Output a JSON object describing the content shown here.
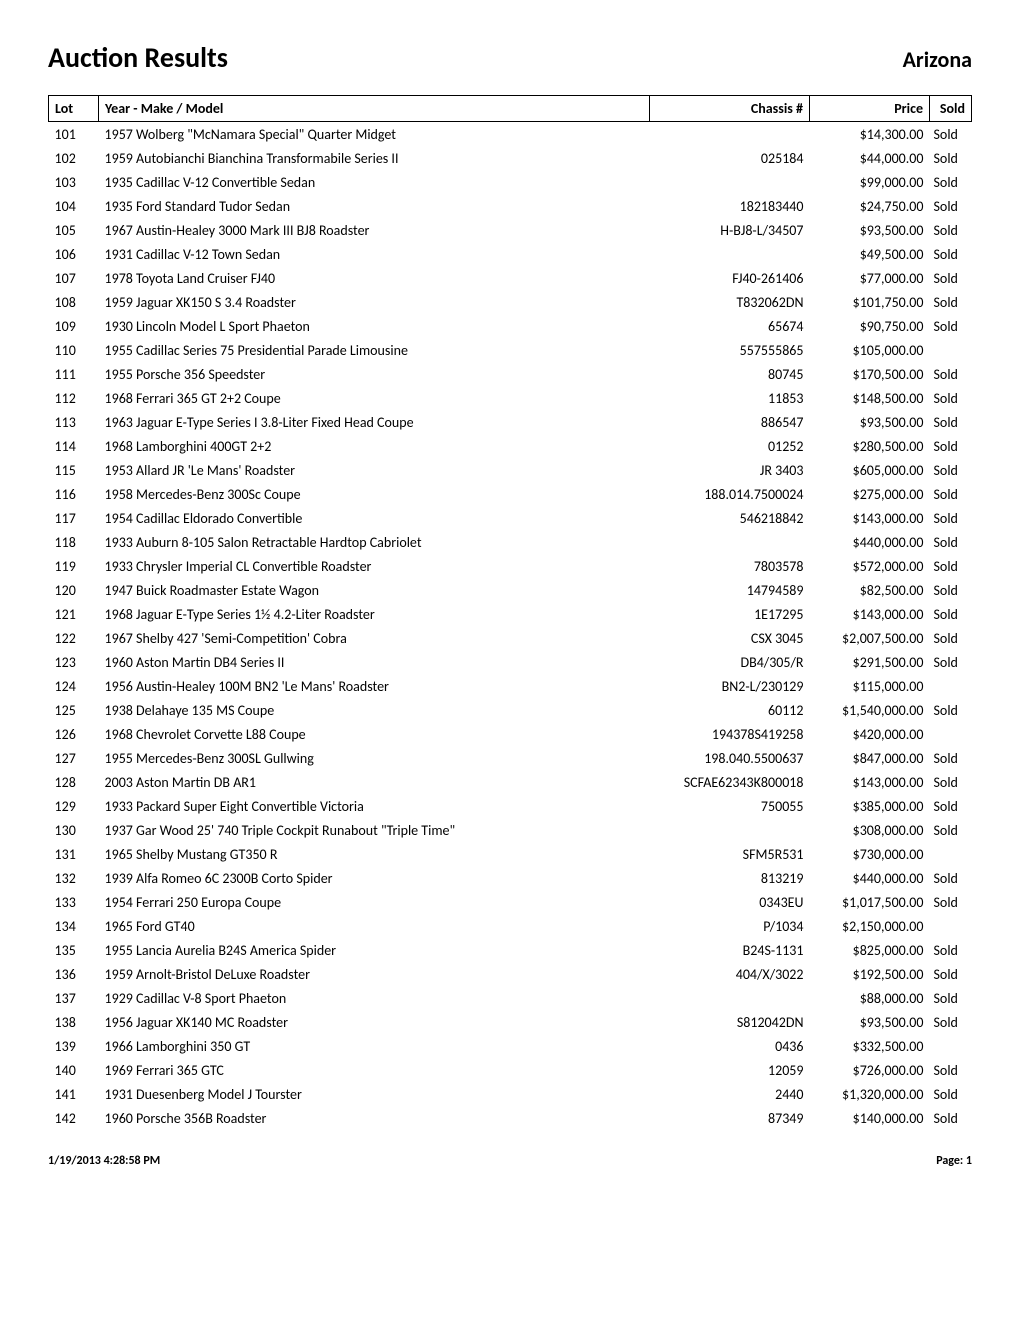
{
  "header": {
    "title": "Auction Results",
    "location": "Arizona"
  },
  "table": {
    "columns": {
      "lot": "Lot",
      "model": "Year - Make / Model",
      "chassis": "Chassis #",
      "price": "Price",
      "sold": "Sold"
    },
    "rows": [
      {
        "lot": "101",
        "model": "1957 Wolberg \"McNamara Special\" Quarter Midget",
        "chassis": "",
        "price": "$14,300.00",
        "sold": "Sold"
      },
      {
        "lot": "102",
        "model": "1959 Autobianchi Bianchina Transformabile Series II",
        "chassis": "025184",
        "price": "$44,000.00",
        "sold": "Sold"
      },
      {
        "lot": "103",
        "model": "1935 Cadillac V-12 Convertible Sedan",
        "chassis": "",
        "price": "$99,000.00",
        "sold": "Sold"
      },
      {
        "lot": "104",
        "model": "1935 Ford Standard Tudor Sedan",
        "chassis": "182183440",
        "price": "$24,750.00",
        "sold": "Sold"
      },
      {
        "lot": "105",
        "model": "1967 Austin-Healey 3000 Mark III BJ8 Roadster",
        "chassis": "H-BJ8-L/34507",
        "price": "$93,500.00",
        "sold": "Sold"
      },
      {
        "lot": "106",
        "model": "1931 Cadillac V-12 Town Sedan",
        "chassis": "",
        "price": "$49,500.00",
        "sold": "Sold"
      },
      {
        "lot": "107",
        "model": "1978 Toyota Land Cruiser FJ40",
        "chassis": "FJ40-261406",
        "price": "$77,000.00",
        "sold": "Sold"
      },
      {
        "lot": "108",
        "model": "1959 Jaguar XK150 S 3.4 Roadster",
        "chassis": "T832062DN",
        "price": "$101,750.00",
        "sold": "Sold"
      },
      {
        "lot": "109",
        "model": "1930 Lincoln Model L Sport Phaeton",
        "chassis": "65674",
        "price": "$90,750.00",
        "sold": "Sold"
      },
      {
        "lot": "110",
        "model": "1955 Cadillac Series 75 Presidential Parade Limousine",
        "chassis": "557555865",
        "price": "$105,000.00",
        "sold": ""
      },
      {
        "lot": "111",
        "model": "1955 Porsche 356 Speedster",
        "chassis": "80745",
        "price": "$170,500.00",
        "sold": "Sold"
      },
      {
        "lot": "112",
        "model": "1968 Ferrari 365 GT 2+2 Coupe",
        "chassis": "11853",
        "price": "$148,500.00",
        "sold": "Sold"
      },
      {
        "lot": "113",
        "model": "1963 Jaguar E-Type Series I 3.8-Liter Fixed Head Coupe",
        "chassis": "886547",
        "price": "$93,500.00",
        "sold": "Sold"
      },
      {
        "lot": "114",
        "model": "1968 Lamborghini 400GT 2+2",
        "chassis": "01252",
        "price": "$280,500.00",
        "sold": "Sold"
      },
      {
        "lot": "115",
        "model": "1953 Allard JR 'Le Mans' Roadster",
        "chassis": "JR 3403",
        "price": "$605,000.00",
        "sold": "Sold"
      },
      {
        "lot": "116",
        "model": "1958 Mercedes-Benz 300Sc Coupe",
        "chassis": "188.014.7500024",
        "price": "$275,000.00",
        "sold": "Sold"
      },
      {
        "lot": "117",
        "model": "1954 Cadillac Eldorado Convertible",
        "chassis": "546218842",
        "price": "$143,000.00",
        "sold": "Sold"
      },
      {
        "lot": "118",
        "model": "1933 Auburn 8-105 Salon Retractable Hardtop Cabriolet",
        "chassis": "",
        "price": "$440,000.00",
        "sold": "Sold"
      },
      {
        "lot": "119",
        "model": "1933 Chrysler Imperial CL Convertible Roadster",
        "chassis": "7803578",
        "price": "$572,000.00",
        "sold": "Sold"
      },
      {
        "lot": "120",
        "model": "1947 Buick Roadmaster Estate Wagon",
        "chassis": "14794589",
        "price": "$82,500.00",
        "sold": "Sold"
      },
      {
        "lot": "121",
        "model": "1968 Jaguar E-Type Series 1½ 4.2-Liter Roadster",
        "chassis": "1E17295",
        "price": "$143,000.00",
        "sold": "Sold"
      },
      {
        "lot": "122",
        "model": "1967 Shelby 427 'Semi-Competition' Cobra",
        "chassis": "CSX 3045",
        "price": "$2,007,500.00",
        "sold": "Sold"
      },
      {
        "lot": "123",
        "model": "1960 Aston Martin DB4 Series II",
        "chassis": "DB4/305/R",
        "price": "$291,500.00",
        "sold": "Sold"
      },
      {
        "lot": "124",
        "model": "1956 Austin-Healey 100M BN2 'Le Mans' Roadster",
        "chassis": "BN2-L/230129",
        "price": "$115,000.00",
        "sold": ""
      },
      {
        "lot": "125",
        "model": "1938 Delahaye 135 MS Coupe",
        "chassis": "60112",
        "price": "$1,540,000.00",
        "sold": "Sold"
      },
      {
        "lot": "126",
        "model": "1968 Chevrolet Corvette L88 Coupe",
        "chassis": "194378S419258",
        "price": "$420,000.00",
        "sold": ""
      },
      {
        "lot": "127",
        "model": "1955 Mercedes-Benz 300SL Gullwing",
        "chassis": "198.040.5500637",
        "price": "$847,000.00",
        "sold": "Sold"
      },
      {
        "lot": "128",
        "model": "2003 Aston Martin DB AR1",
        "chassis": "SCFAE62343K800018",
        "price": "$143,000.00",
        "sold": "Sold"
      },
      {
        "lot": "129",
        "model": "1933 Packard Super Eight Convertible Victoria",
        "chassis": "750055",
        "price": "$385,000.00",
        "sold": "Sold"
      },
      {
        "lot": "130",
        "model": "1937 Gar Wood 25' 740 Triple Cockpit Runabout \"Triple Time\"",
        "chassis": "",
        "price": "$308,000.00",
        "sold": "Sold"
      },
      {
        "lot": "131",
        "model": "1965 Shelby Mustang GT350 R",
        "chassis": "SFM5R531",
        "price": "$730,000.00",
        "sold": ""
      },
      {
        "lot": "132",
        "model": "1939 Alfa Romeo 6C 2300B Corto Spider",
        "chassis": "813219",
        "price": "$440,000.00",
        "sold": "Sold"
      },
      {
        "lot": "133",
        "model": "1954 Ferrari 250 Europa Coupe",
        "chassis": "0343EU",
        "price": "$1,017,500.00",
        "sold": "Sold"
      },
      {
        "lot": "134",
        "model": "1965 Ford GT40",
        "chassis": "P/1034",
        "price": "$2,150,000.00",
        "sold": ""
      },
      {
        "lot": "135",
        "model": "1955 Lancia Aurelia B24S America Spider",
        "chassis": "B24S-1131",
        "price": "$825,000.00",
        "sold": "Sold"
      },
      {
        "lot": "136",
        "model": "1959 Arnolt-Bristol DeLuxe Roadster",
        "chassis": "404/X/3022",
        "price": "$192,500.00",
        "sold": "Sold"
      },
      {
        "lot": "137",
        "model": "1929 Cadillac V-8 Sport Phaeton",
        "chassis": "",
        "price": "$88,000.00",
        "sold": "Sold"
      },
      {
        "lot": "138",
        "model": "1956 Jaguar XK140 MC Roadster",
        "chassis": "S812042DN",
        "price": "$93,500.00",
        "sold": "Sold"
      },
      {
        "lot": "139",
        "model": "1966 Lamborghini 350 GT",
        "chassis": "0436",
        "price": "$332,500.00",
        "sold": ""
      },
      {
        "lot": "140",
        "model": "1969 Ferrari 365 GTC",
        "chassis": "12059",
        "price": "$726,000.00",
        "sold": "Sold"
      },
      {
        "lot": "141",
        "model": "1931 Duesenberg Model J Tourster",
        "chassis": "2440",
        "price": "$1,320,000.00",
        "sold": "Sold"
      },
      {
        "lot": "142",
        "model": "1960 Porsche 356B Roadster",
        "chassis": "87349",
        "price": "$140,000.00",
        "sold": "Sold"
      }
    ]
  },
  "footer": {
    "timestamp": "1/19/2013 4:28:58 PM",
    "page": "Page: 1"
  }
}
